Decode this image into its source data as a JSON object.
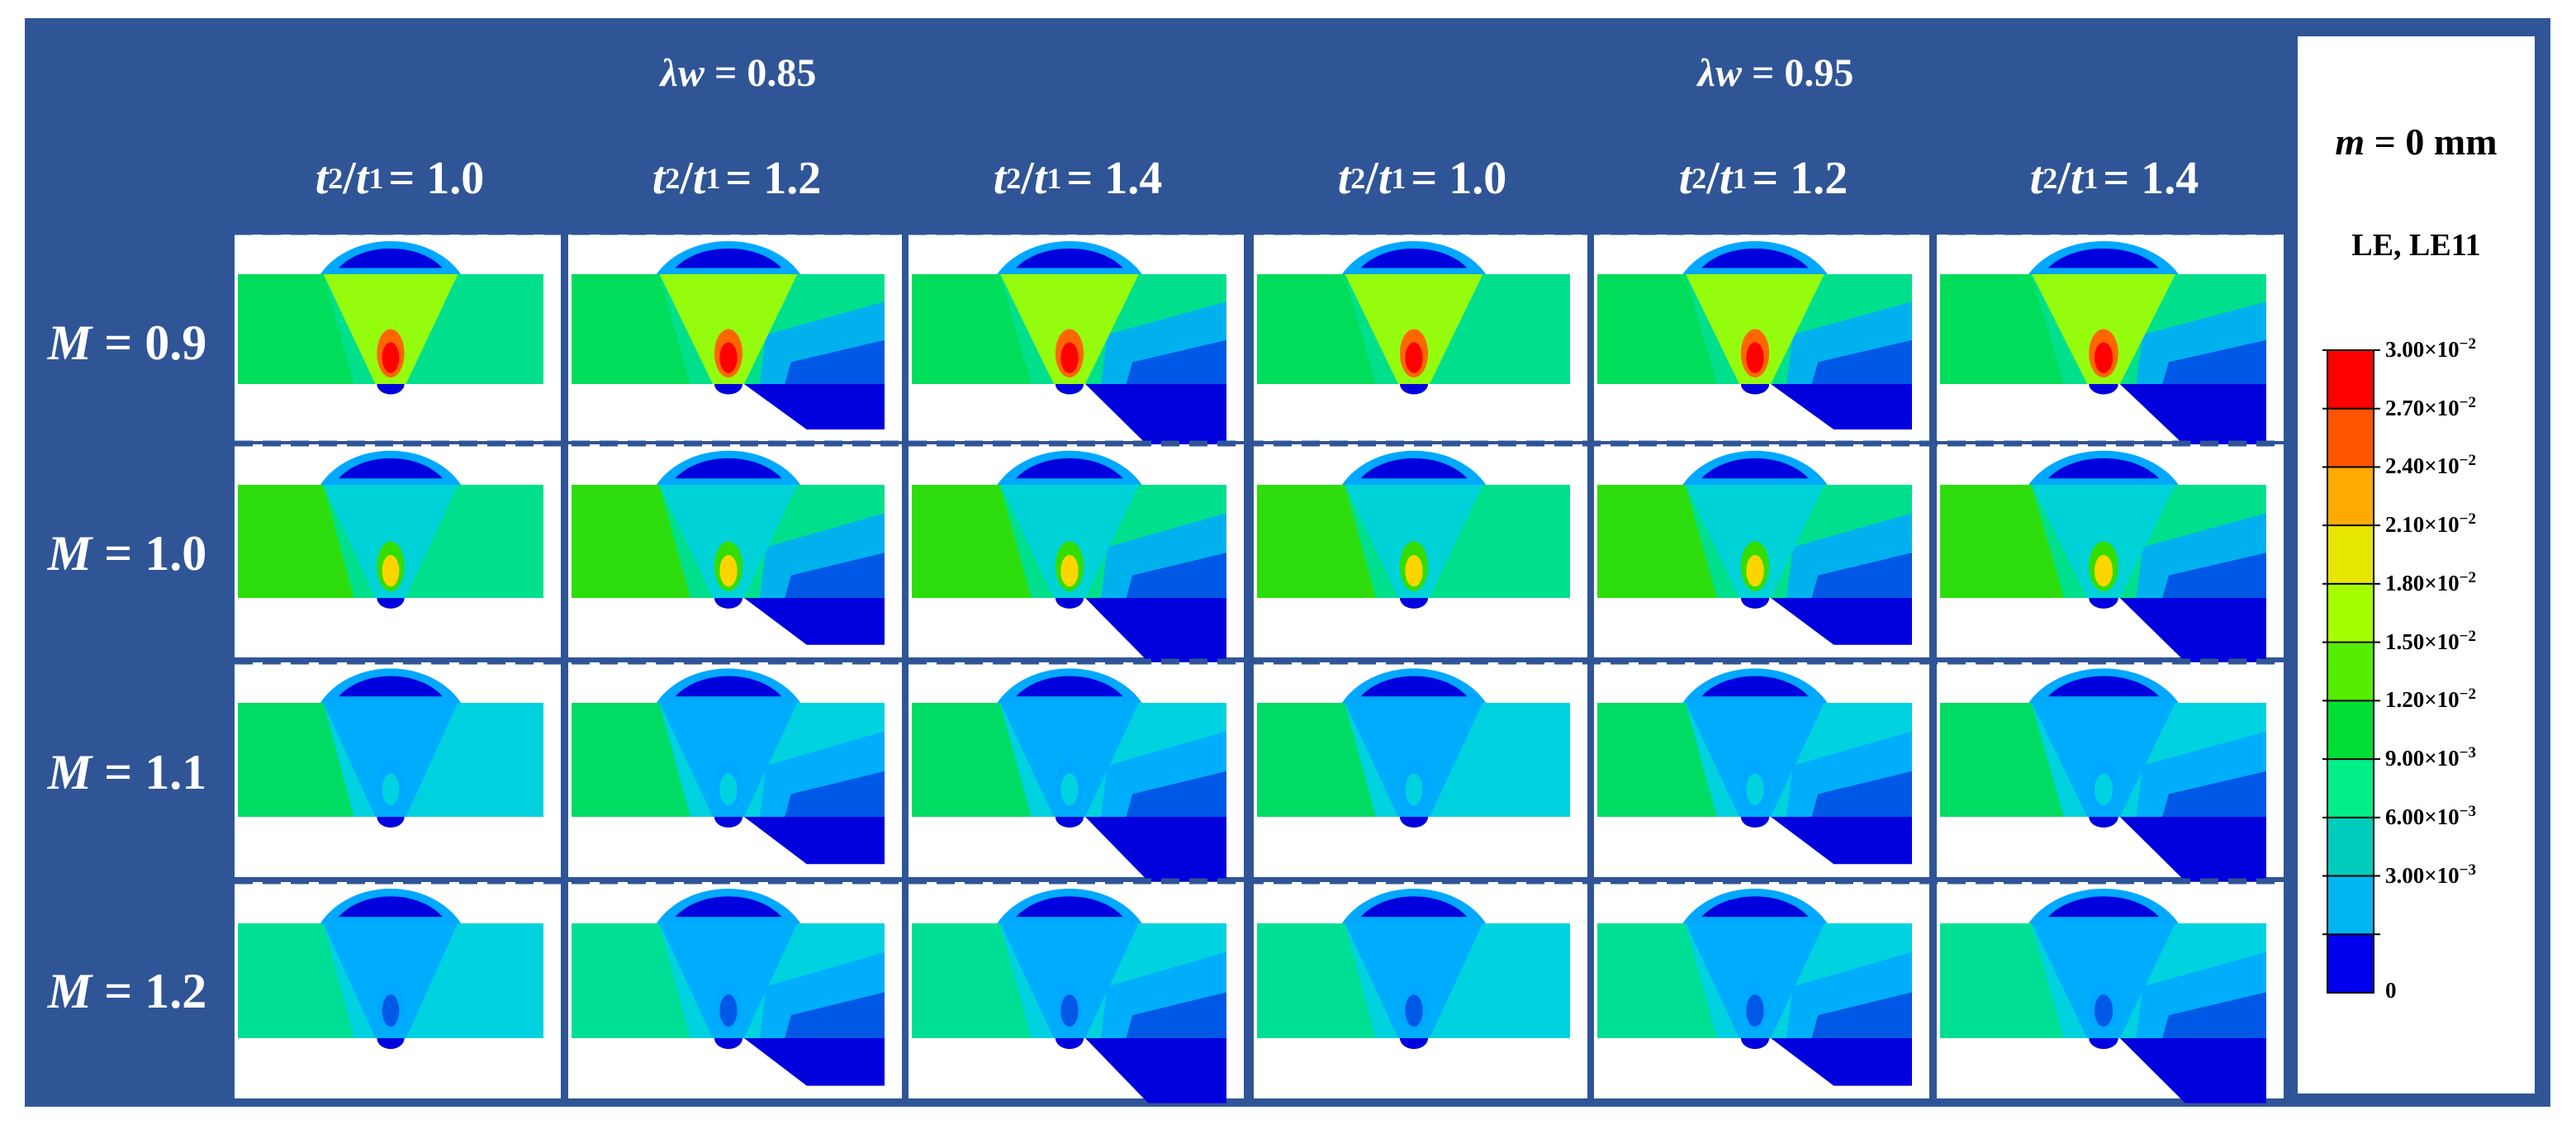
{
  "figure": {
    "group_headers": [
      {
        "symbol": "λw",
        "value": "= 0.85"
      },
      {
        "symbol": "λw",
        "value": "= 0.95"
      }
    ],
    "column_headers": [
      {
        "ratio_value": "= 1.0"
      },
      {
        "ratio_value": "= 1.2"
      },
      {
        "ratio_value": "= 1.4"
      },
      {
        "ratio_value": "= 1.0"
      },
      {
        "ratio_value": "= 1.2"
      },
      {
        "ratio_value": "= 1.4"
      }
    ],
    "ratio_symbol": {
      "t": "t",
      "sub2": "2",
      "sub1": "1",
      "slash": "/"
    },
    "row_headers": [
      {
        "symbol": "M",
        "value": "= 0.9"
      },
      {
        "symbol": "M",
        "value": "= 1.0"
      },
      {
        "symbol": "M",
        "value": "= 1.1"
      },
      {
        "symbol": "M",
        "value": "= 1.2"
      }
    ],
    "legend": {
      "condition_symbol": "m",
      "condition_value": "= 0 mm",
      "variable": "LE, LE11",
      "levels": [
        {
          "mantissa": "3.00×",
          "exp": "−2",
          "color": "#ff0000"
        },
        {
          "mantissa": "2.70×",
          "exp": "−2",
          "color": "#ff5500"
        },
        {
          "mantissa": "2.40×",
          "exp": "−2",
          "color": "#ffaa00"
        },
        {
          "mantissa": "2.10×",
          "exp": "−2",
          "color": "#e6e600"
        },
        {
          "mantissa": "1.80×",
          "exp": "−2",
          "color": "#a6ff00"
        },
        {
          "mantissa": "1.50×",
          "exp": "−2",
          "color": "#55ee00"
        },
        {
          "mantissa": "1.20×",
          "exp": "−2",
          "color": "#00dd33"
        },
        {
          "mantissa": "9.00×",
          "exp": "−3",
          "color": "#00ee88"
        },
        {
          "mantissa": "6.00×",
          "exp": "−3",
          "color": "#00ccbb"
        },
        {
          "mantissa": "3.00×",
          "exp": "−3",
          "color": "#00b6f0"
        },
        {
          "mantissa": "0",
          "exp": "",
          "color": "#0060f0"
        }
      ],
      "bottom_color": "#0000ee"
    },
    "colors": {
      "frame": "#2f5597",
      "red": "#ff0000",
      "orange": "#ff6600",
      "yellow": "#ffd500",
      "yellowgreen": "#a6ff00",
      "green": "#33dd00",
      "green2": "#00dd55",
      "teal": "#00e08c",
      "cyan": "#00d2e0",
      "sky": "#00a8ff",
      "blue": "#0058e6",
      "navy": "#0000dd"
    }
  }
}
